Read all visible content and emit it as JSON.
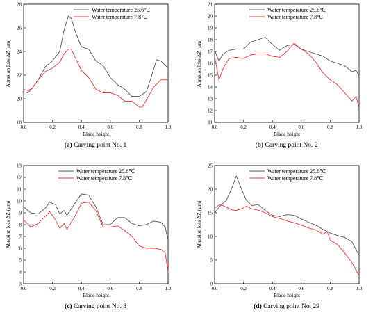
{
  "colors": {
    "series_25_6": "#555555",
    "series_7_8": "#ff3030",
    "frame": "#000000"
  },
  "chart_data": [
    {
      "type": "line",
      "caption_letter": "(a)",
      "caption_text": "Carving point No. 1",
      "xlabel": "Blade height",
      "ylabel": "Abrasion loss ΔZ (μm)",
      "xlim": [
        0,
        1
      ],
      "ylim": [
        18,
        28
      ],
      "xticks": [
        0.0,
        0.2,
        0.4,
        0.6,
        0.8,
        1.0
      ],
      "yticks": [
        18,
        20,
        22,
        24,
        26,
        28
      ],
      "legend_position": "top-left",
      "series": [
        {
          "name": "Water temperature 25.6℃",
          "x": [
            0,
            0.03,
            0.06,
            0.1,
            0.15,
            0.2,
            0.25,
            0.28,
            0.31,
            0.33,
            0.36,
            0.4,
            0.45,
            0.5,
            0.55,
            0.6,
            0.65,
            0.7,
            0.75,
            0.8,
            0.85,
            0.88,
            0.92,
            0.95,
            1.0
          ],
          "y": [
            20.6,
            20.5,
            20.9,
            21.6,
            22.7,
            23.2,
            24.0,
            25.8,
            27.0,
            26.8,
            25.6,
            24.4,
            24.2,
            23.2,
            22.8,
            21.8,
            21.2,
            20.8,
            20.2,
            20.2,
            20.6,
            21.7,
            23.3,
            23.2,
            22.6
          ]
        },
        {
          "name": "Water temperature 7.8℃",
          "x": [
            0,
            0.03,
            0.06,
            0.1,
            0.15,
            0.2,
            0.25,
            0.28,
            0.31,
            0.33,
            0.36,
            0.4,
            0.45,
            0.5,
            0.55,
            0.6,
            0.65,
            0.7,
            0.75,
            0.8,
            0.82,
            0.85,
            0.9,
            0.95,
            1.0
          ],
          "y": [
            20.8,
            20.7,
            20.9,
            21.6,
            22.3,
            22.6,
            23.1,
            23.8,
            24.2,
            24.2,
            23.4,
            22.4,
            21.8,
            20.8,
            20.5,
            20.5,
            20.3,
            19.8,
            19.8,
            19.3,
            19.3,
            19.9,
            21.0,
            21.6,
            21.6
          ]
        }
      ]
    },
    {
      "type": "line",
      "caption_letter": "(b)",
      "caption_text": "Carving point No. 2",
      "xlabel": "Blade height",
      "ylabel": "Abrasion loss ΔZ (μm)",
      "xlim": [
        0,
        1
      ],
      "ylim": [
        11,
        21
      ],
      "xticks": [
        0.0,
        0.2,
        0.4,
        0.6,
        0.8,
        1.0
      ],
      "yticks": [
        11,
        12,
        13,
        14,
        15,
        16,
        17,
        18,
        19,
        20,
        21
      ],
      "legend_position": "top-right",
      "series": [
        {
          "name": "Water temperature 25.6℃",
          "x": [
            0,
            0.03,
            0.06,
            0.1,
            0.15,
            0.2,
            0.25,
            0.3,
            0.35,
            0.4,
            0.45,
            0.5,
            0.55,
            0.6,
            0.65,
            0.7,
            0.75,
            0.8,
            0.85,
            0.9,
            0.95,
            0.98,
            1.0
          ],
          "y": [
            17.1,
            16.2,
            16.8,
            17.1,
            17.2,
            17.2,
            17.8,
            18.0,
            18.2,
            17.6,
            17.1,
            17.5,
            17.6,
            17.2,
            17.0,
            16.8,
            16.6,
            16.2,
            16.0,
            15.8,
            15.3,
            15.4,
            14.9
          ]
        },
        {
          "name": "Water temperature 7.8℃",
          "x": [
            0,
            0.03,
            0.06,
            0.1,
            0.15,
            0.2,
            0.25,
            0.3,
            0.35,
            0.4,
            0.45,
            0.5,
            0.55,
            0.6,
            0.65,
            0.7,
            0.75,
            0.8,
            0.85,
            0.9,
            0.95,
            0.98,
            1.0
          ],
          "y": [
            16.6,
            14.6,
            15.6,
            16.4,
            16.5,
            16.4,
            16.7,
            16.8,
            16.8,
            16.6,
            16.5,
            17.0,
            17.7,
            17.2,
            16.8,
            16.1,
            15.2,
            14.6,
            14.2,
            13.5,
            12.8,
            13.2,
            12.2
          ]
        }
      ]
    },
    {
      "type": "line",
      "caption_letter": "(c)",
      "caption_text": "Carving point No. 8",
      "xlabel": "Blade height",
      "ylabel": "Abrasion loss ΔZ (μm)",
      "xlim": [
        0,
        1
      ],
      "ylim": [
        3,
        13
      ],
      "xticks": [
        0.0,
        0.2,
        0.4,
        0.6,
        0.8,
        1.0
      ],
      "yticks": [
        3,
        4,
        5,
        6,
        7,
        8,
        9,
        10,
        11,
        12,
        13
      ],
      "legend_position": "top-right",
      "series": [
        {
          "name": "Water temperature 25.6℃",
          "x": [
            0,
            0.05,
            0.1,
            0.15,
            0.18,
            0.22,
            0.25,
            0.28,
            0.3,
            0.35,
            0.4,
            0.45,
            0.5,
            0.55,
            0.6,
            0.65,
            0.7,
            0.75,
            0.8,
            0.85,
            0.9,
            0.95,
            0.98,
            1.0
          ],
          "y": [
            9.5,
            9.0,
            8.9,
            9.4,
            9.9,
            9.7,
            8.9,
            9.2,
            8.8,
            9.7,
            10.6,
            10.5,
            9.5,
            8.0,
            8.0,
            8.6,
            8.6,
            8.1,
            7.9,
            8.0,
            8.3,
            8.2,
            7.8,
            6.7
          ]
        },
        {
          "name": "Water temperature 7.8℃",
          "x": [
            0,
            0.05,
            0.1,
            0.15,
            0.18,
            0.22,
            0.25,
            0.28,
            0.3,
            0.35,
            0.4,
            0.45,
            0.5,
            0.55,
            0.6,
            0.65,
            0.7,
            0.75,
            0.8,
            0.85,
            0.9,
            0.95,
            0.98,
            1.0
          ],
          "y": [
            8.4,
            7.8,
            8.1,
            8.7,
            9.1,
            8.4,
            7.7,
            8.1,
            7.6,
            8.6,
            9.8,
            9.9,
            9.2,
            7.8,
            7.8,
            7.9,
            7.5,
            7.0,
            6.2,
            6.0,
            6.0,
            5.9,
            5.6,
            4.0
          ]
        }
      ]
    },
    {
      "type": "line",
      "caption_letter": "(d)",
      "caption_text": "Carving point No. 29",
      "xlabel": "Blade height",
      "ylabel": "Abrasion loss ΔZ (μm)",
      "xlim": [
        0,
        1
      ],
      "ylim": [
        0,
        25
      ],
      "xticks": [
        0.0,
        0.2,
        0.4,
        0.6,
        0.8,
        1.0
      ],
      "yticks": [
        0,
        5,
        10,
        15,
        20,
        25
      ],
      "legend_position": "top-right",
      "series": [
        {
          "name": "Water temperature 25.6℃",
          "x": [
            0,
            0.04,
            0.08,
            0.12,
            0.15,
            0.18,
            0.22,
            0.26,
            0.3,
            0.35,
            0.4,
            0.45,
            0.5,
            0.55,
            0.6,
            0.65,
            0.7,
            0.75,
            0.8,
            0.85,
            0.9,
            0.95,
            1.0
          ],
          "y": [
            15.0,
            16.5,
            17.6,
            20.3,
            22.8,
            20.5,
            17.6,
            16.5,
            16.8,
            15.5,
            14.5,
            14.2,
            14.6,
            14.5,
            13.7,
            13.0,
            12.4,
            11.5,
            10.7,
            10.2,
            9.8,
            8.9,
            6.0
          ]
        },
        {
          "name": "Water temperature 7.8℃",
          "x": [
            0,
            0.04,
            0.08,
            0.12,
            0.15,
            0.18,
            0.22,
            0.26,
            0.3,
            0.35,
            0.4,
            0.45,
            0.5,
            0.55,
            0.6,
            0.65,
            0.7,
            0.75,
            0.78,
            0.8,
            0.85,
            0.9,
            0.95,
            1.0
          ],
          "y": [
            16.0,
            16.8,
            16.2,
            15.6,
            15.5,
            15.8,
            16.4,
            15.8,
            15.6,
            15.0,
            14.2,
            13.8,
            13.3,
            12.9,
            12.4,
            11.8,
            11.4,
            10.5,
            11.0,
            9.2,
            8.3,
            6.5,
            4.5,
            1.7
          ]
        }
      ]
    }
  ]
}
